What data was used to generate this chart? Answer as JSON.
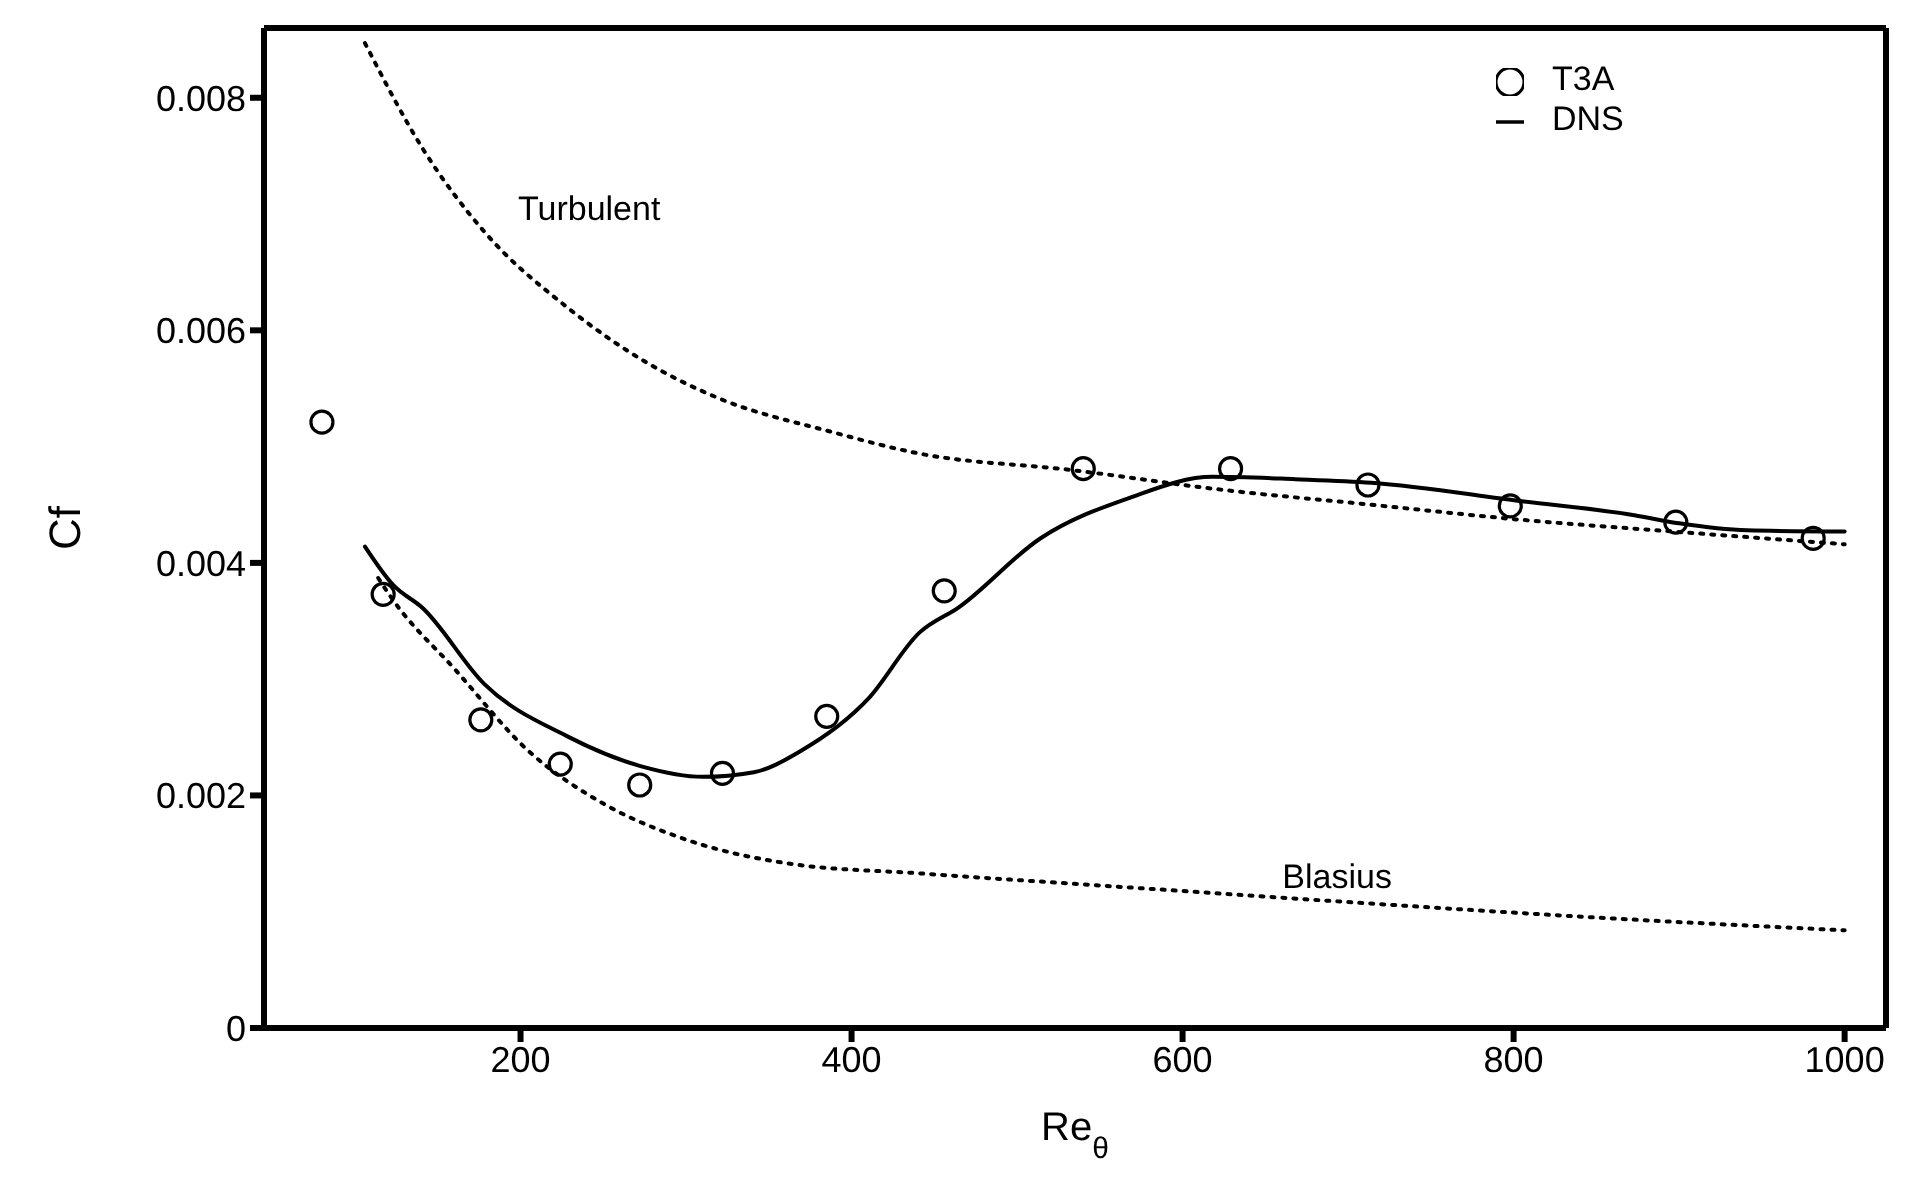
{
  "chart_data": {
    "type": "line",
    "xlabel": "Re$_{θ}$",
    "ylabel": "Cf",
    "xlim": [
      45,
      1025
    ],
    "xticks": [
      200,
      400,
      600,
      800,
      1000
    ],
    "ylim": [
      0,
      0.0086
    ],
    "yticks": [
      0,
      0.002,
      0.004,
      0.006,
      0.008
    ],
    "grid": false,
    "legend": "top right",
    "series": [
      {
        "name": "T3A",
        "type": "scatter",
        "marker": "circle",
        "color": "#000000",
        "x": [
          80,
          117,
          176,
          224,
          272,
          322,
          385,
          456,
          540,
          629,
          712,
          798,
          898,
          981
        ],
        "values": [
          0.00521,
          0.00373,
          0.00265,
          0.00227,
          0.00209,
          0.00219,
          0.00268,
          0.00376,
          0.00481,
          0.00481,
          0.00467,
          0.00449,
          0.00435,
          0.00421
        ]
      },
      {
        "name": "DNS",
        "type": "line",
        "line_style": "solid",
        "color": "#000000",
        "x": [
          106,
          123,
          141,
          178,
          228,
          273,
          310,
          341,
          369,
          410,
          441,
          465,
          514,
          568,
          618,
          668,
          714,
          805,
          873,
          900,
          941,
          1000
        ],
        "values": [
          0.00414,
          0.00381,
          0.00361,
          0.00296,
          0.00251,
          0.00225,
          0.00216,
          0.0022,
          0.00238,
          0.00283,
          0.0034,
          0.00362,
          0.00421,
          0.00456,
          0.00474,
          0.00472,
          0.00469,
          0.00453,
          0.00441,
          0.00434,
          0.00428,
          0.00427
        ]
      },
      {
        "type": "line",
        "line_style": "dotted",
        "color": "#000000",
        "x": [
          106,
          141,
          178,
          228,
          273,
          319,
          387,
          441,
          532,
          623,
          714,
          805,
          896,
          1000
        ],
        "values": [
          0.00847,
          0.00756,
          0.00685,
          0.0062,
          0.00575,
          0.00542,
          0.00513,
          0.00494,
          0.0048,
          0.00463,
          0.0045,
          0.00437,
          0.00427,
          0.00416
        ]
      },
      {
        "type": "line",
        "line_style": "dotted",
        "color": "#000000",
        "x": [
          114,
          123,
          160,
          205,
          250,
          296,
          364,
          441,
          577,
          714,
          850,
          1000
        ],
        "values": [
          0.00387,
          0.00368,
          0.00309,
          0.00238,
          0.00193,
          0.00164,
          0.00141,
          0.00133,
          0.0012,
          0.00107,
          0.00095,
          0.00084
        ]
      }
    ],
    "annotations": [
      "Turbulent",
      "Blasius"
    ]
  }
}
